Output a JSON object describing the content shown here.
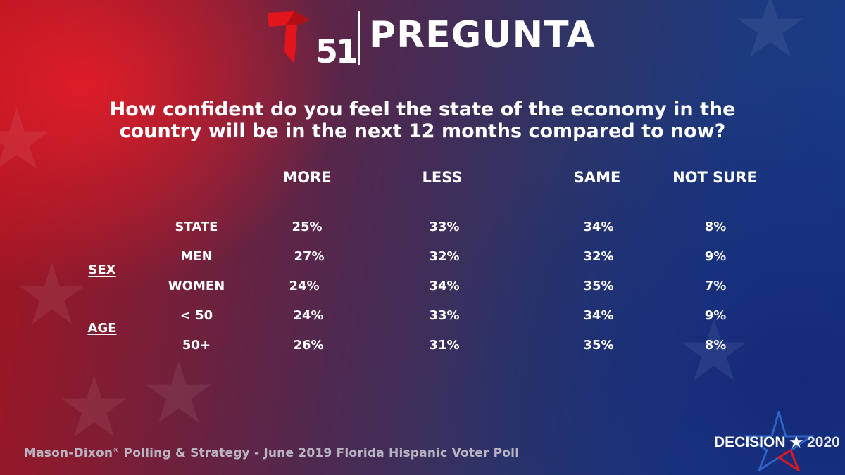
{
  "header": {
    "logo_number": "51",
    "brand": "PREGUNTA",
    "logo_color": "#e3151c"
  },
  "question": "How confident do you feel the state of the economy in the country will be in the next 12 months compared to now?",
  "table": {
    "columns": [
      "MORE",
      "LESS",
      "SAME",
      "NOT SURE"
    ],
    "groups": [
      "SEX",
      "AGE"
    ],
    "rows": [
      {
        "label": "STATE",
        "values": [
          "25%",
          "33%",
          "34%",
          "8%"
        ]
      },
      {
        "label": "MEN",
        "values": [
          "27%",
          "32%",
          "32%",
          "9%"
        ]
      },
      {
        "label": "WOMEN",
        "values": [
          "24%",
          "34%",
          "35%",
          "7%"
        ]
      },
      {
        "label": "< 50",
        "values": [
          "24%",
          "33%",
          "34%",
          "9%"
        ]
      },
      {
        "label": "50+",
        "values": [
          "26%",
          "31%",
          "35%",
          "8%"
        ]
      }
    ]
  },
  "footer": {
    "source_brand": "Mason-Dixon",
    "source_mark": "®",
    "source_rest": " Polling & Strategy - June 2019 Florida Hispanic Voter Poll",
    "decision_word": "DECISION",
    "decision_star": "★",
    "decision_year": "2020"
  },
  "colors": {
    "red": "#e3151c",
    "blue": "#1c3a80",
    "source_text": "#b9b3c2"
  }
}
